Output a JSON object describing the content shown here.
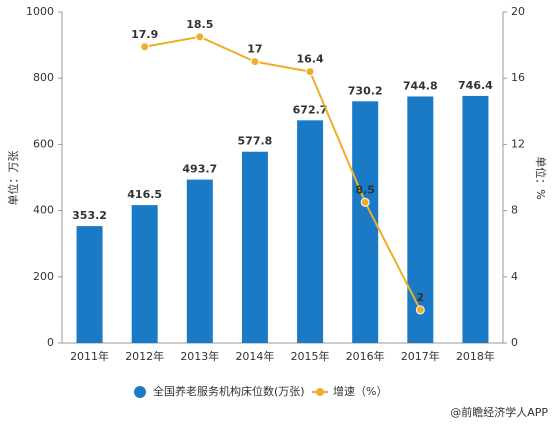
{
  "chart_data": {
    "type": "bar",
    "categories": [
      "2011年",
      "2012年",
      "2013年",
      "2014年",
      "2015年",
      "2016年",
      "2017年",
      "2018年"
    ],
    "series": [
      {
        "name": "全国养老服务机构床位数(万张)",
        "type": "bar",
        "color": "#1a7ac6",
        "values": [
          353.2,
          416.5,
          493.7,
          577.8,
          672.7,
          730.2,
          744.8,
          746.4
        ]
      },
      {
        "name": "增速（%）",
        "type": "line",
        "axis": "y2",
        "color": "#f0ad2a",
        "values": [
          null,
          17.9,
          18.5,
          17,
          16.4,
          8.5,
          2,
          null
        ]
      }
    ],
    "ylabel": "单位：万张",
    "y2label": "单位：%",
    "ylim": [
      0,
      1000
    ],
    "yticks": [
      0,
      200,
      400,
      600,
      800,
      1000
    ],
    "y2lim": [
      0,
      20
    ],
    "y2ticks": [
      0,
      4,
      8,
      12,
      16,
      20
    ],
    "source": "@前瞻经济学人APP"
  }
}
